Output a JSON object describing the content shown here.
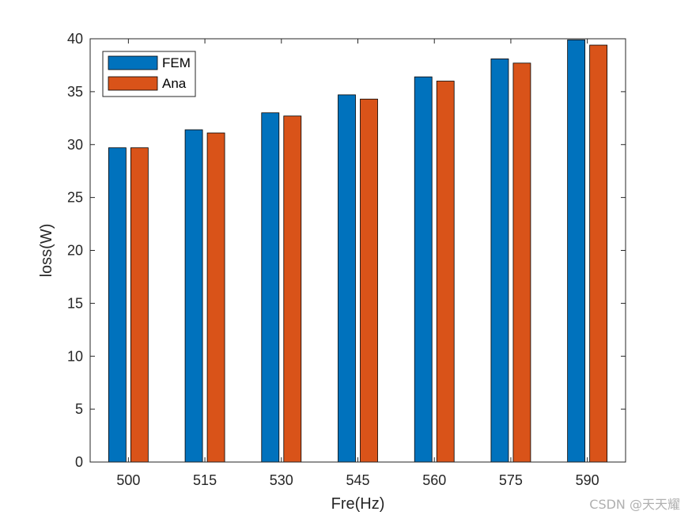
{
  "chart_data": {
    "type": "bar",
    "categories": [
      "500",
      "515",
      "530",
      "545",
      "560",
      "575",
      "590"
    ],
    "series": [
      {
        "name": "FEM",
        "color": "#0072BD",
        "values": [
          29.7,
          31.4,
          33.0,
          34.7,
          36.4,
          38.1,
          39.9
        ]
      },
      {
        "name": "Ana",
        "color": "#D95319",
        "values": [
          29.7,
          31.1,
          32.7,
          34.3,
          36.0,
          37.7,
          39.4
        ]
      }
    ],
    "title": "",
    "xlabel": "Fre(Hz)",
    "ylabel": "loss(W)",
    "ylim": [
      0,
      40
    ],
    "yticks": [
      0,
      5,
      10,
      15,
      20,
      25,
      30,
      35,
      40
    ],
    "grid": false,
    "legend_position": "top-left"
  },
  "watermark": "CSDN @天天耀"
}
